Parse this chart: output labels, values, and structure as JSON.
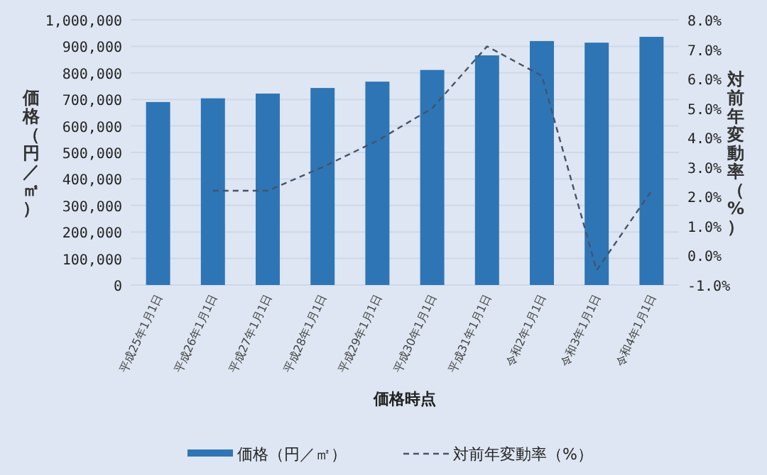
{
  "chart_data": {
    "type": "bar",
    "xlabel": "価格時点",
    "ylabel": "価格（円／㎡）",
    "y2label": "対前年変動率（%）",
    "categories": [
      "平成25年1月1日",
      "平成26年1月1日",
      "平成27年1月1日",
      "平成28年1月1日",
      "平成29年1月1日",
      "平成30年1月1日",
      "平成31年1月1日",
      "令和2年1月1日",
      "令和3年1月1日",
      "令和4年1月1日"
    ],
    "series": [
      {
        "name": "価格（円／㎡）",
        "color": "#2e75b6",
        "values": [
          690000,
          704000,
          722000,
          743000,
          767000,
          811000,
          866000,
          920000,
          914000,
          936000
        ]
      },
      {
        "name": "対前年変動率（%）",
        "type": "line",
        "axis": "y2",
        "line_style": "dashed",
        "color": "#44546a",
        "values": [
          null,
          2.2,
          2.2,
          3.0,
          3.9,
          5.0,
          7.1,
          6.1,
          -0.5,
          2.2
        ]
      }
    ],
    "ylim": [
      0,
      1000000
    ],
    "yticks": [
      0,
      {
        "value": 100000,
        "label": "100,000"
      },
      {
        "value": 200000,
        "label": "200,000"
      },
      {
        "value": 300000,
        "label": "300,000"
      },
      {
        "value": 400000,
        "label": "400,000"
      },
      {
        "value": 500000,
        "label": "500,000"
      },
      {
        "value": 600000,
        "label": "600,000"
      },
      {
        "value": 700000,
        "label": "700,000"
      },
      {
        "value": 800000,
        "label": "800,000"
      },
      {
        "value": 900000,
        "label": "900,000"
      },
      {
        "value": 1000000,
        "label": "1,000,000"
      }
    ],
    "y2lim": [
      -1,
      8
    ],
    "y2ticks": [
      {
        "value": -1,
        "label": "-1.0%"
      },
      {
        "value": 0,
        "label": "0.0%"
      },
      {
        "value": 1,
        "label": "1.0%"
      },
      {
        "value": 2,
        "label": "2.0%"
      },
      {
        "value": 3,
        "label": "3.0%"
      },
      {
        "value": 4,
        "label": "4.0%"
      },
      {
        "value": 5,
        "label": "5.0%"
      },
      {
        "value": 6,
        "label": "6.0%"
      },
      {
        "value": 7,
        "label": "7.0%"
      },
      {
        "value": 8,
        "label": "8.0%"
      }
    ],
    "grid": "y",
    "legend": "bottom",
    "marker": "none"
  }
}
